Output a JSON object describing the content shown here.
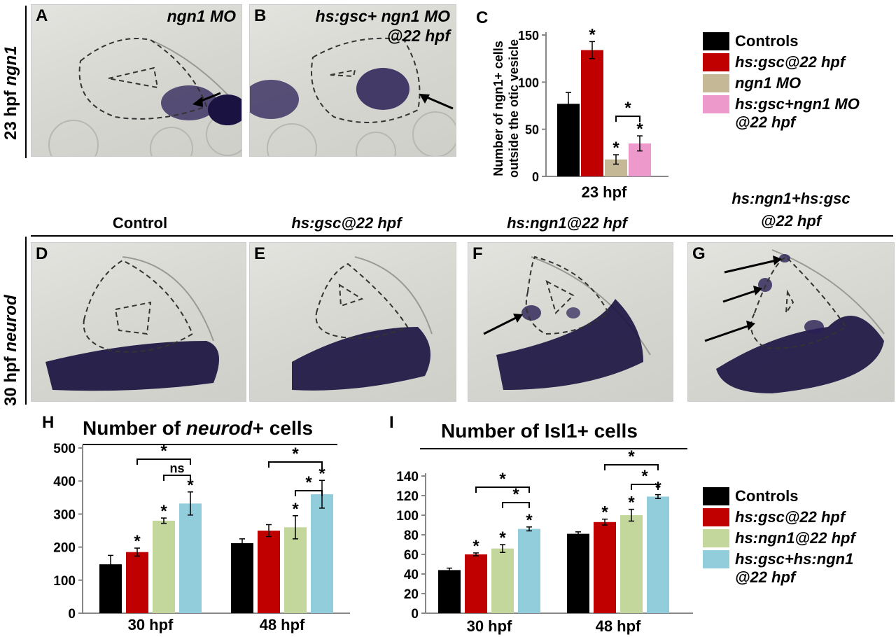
{
  "row1_label": "23 hpf",
  "row1_label_gene": "ngn1",
  "row2_label": "30 hpf",
  "row2_label_gene": "neurod",
  "panels": {
    "A": {
      "letter": "A",
      "title": "ngn1 MO"
    },
    "B": {
      "letter": "B",
      "title_line1": "hs:gsc+ ngn1 MO",
      "title_line2": "@22 hpf"
    },
    "D": {
      "letter": "D"
    },
    "E": {
      "letter": "E"
    },
    "F": {
      "letter": "F"
    },
    "G": {
      "letter": "G"
    }
  },
  "row2_titles": {
    "D": "Control",
    "E": "hs:gsc@22 hpf",
    "F": "hs:ngn1@22 hpf",
    "G_line1": "hs:ngn1+hs:gsc",
    "G_line2": "@22 hpf"
  },
  "colors": {
    "controls": "#000000",
    "gsc": "#c00000",
    "ngn1mo": "#c4b896",
    "gsc_ngn1mo": "#ee99cc",
    "ngn1": "#c3d69b",
    "gsc_ngn1": "#92cddc",
    "stain": "#2a1f55"
  },
  "legend_top": [
    {
      "label": "Controls",
      "color": "#000000"
    },
    {
      "label": "hs:gsc@22 hpf",
      "color": "#c00000"
    },
    {
      "label": "ngn1 MO",
      "color": "#c4b896"
    },
    {
      "label": "hs:gsc+ngn1 MO",
      "label2": "@22 hpf",
      "color": "#ee99cc"
    }
  ],
  "legend_bottom": [
    {
      "label": "Controls",
      "color": "#000000"
    },
    {
      "label": "hs:gsc@22 hpf",
      "color": "#c00000"
    },
    {
      "label": "hs:ngn1@22 hpf",
      "color": "#c3d69b"
    },
    {
      "label": "hs:gsc+hs:ngn1",
      "label2": "@22 hpf",
      "color": "#92cddc"
    }
  ],
  "chart_data": [
    {
      "id": "C",
      "type": "bar",
      "letter": "C",
      "ylabel_line1": "Number of ngn1+ cells",
      "ylabel_line2": "outside the otic vesicle",
      "categories": [
        "23 hpf"
      ],
      "ylim": [
        0,
        150
      ],
      "yticks": [
        0,
        50,
        100,
        150
      ],
      "series": [
        {
          "name": "Controls",
          "color": "#000000",
          "values": [
            77
          ],
          "err": [
            12
          ],
          "star": [
            false
          ]
        },
        {
          "name": "hs:gsc@22 hpf",
          "color": "#c00000",
          "values": [
            134
          ],
          "err": [
            9
          ],
          "star": [
            true
          ]
        },
        {
          "name": "ngn1 MO",
          "color": "#c4b896",
          "values": [
            18
          ],
          "err": [
            5
          ],
          "star": [
            true
          ]
        },
        {
          "name": "hs:gsc+ngn1 MO @22 hpf",
          "color": "#ee99cc",
          "values": [
            35
          ],
          "err": [
            8
          ],
          "star": [
            true
          ]
        }
      ],
      "brackets": [
        {
          "from": 2,
          "to": 3,
          "label": "*"
        }
      ]
    },
    {
      "id": "H",
      "type": "bar",
      "letter": "H",
      "title_pre": "Number of ",
      "title_italic": "neurod",
      "title_post": "+ cells",
      "categories": [
        "30 hpf",
        "48 hpf"
      ],
      "ylim": [
        0,
        500
      ],
      "yticks": [
        0,
        100,
        200,
        300,
        400,
        500
      ],
      "series": [
        {
          "name": "Controls",
          "color": "#000000",
          "values": [
            148,
            212
          ],
          "err": [
            27,
            13
          ],
          "star": [
            false,
            false
          ]
        },
        {
          "name": "hs:gsc@22 hpf",
          "color": "#c00000",
          "values": [
            185,
            250
          ],
          "err": [
            12,
            18
          ],
          "star": [
            true,
            false
          ]
        },
        {
          "name": "hs:ngn1@22 hpf",
          "color": "#c3d69b",
          "values": [
            280,
            260
          ],
          "err": [
            8,
            35
          ],
          "star": [
            true,
            true
          ]
        },
        {
          "name": "hs:gsc+hs:ngn1 @22 hpf",
          "color": "#92cddc",
          "values": [
            332,
            360
          ],
          "err": [
            35,
            42
          ],
          "star": [
            true,
            true
          ]
        }
      ],
      "brackets": [
        {
          "group": 0,
          "from": 1,
          "to": 3,
          "label": "*",
          "level": 2
        },
        {
          "group": 0,
          "from": 2,
          "to": 3,
          "label": "ns",
          "level": 1
        },
        {
          "group": 1,
          "from": 1,
          "to": 3,
          "label": "*",
          "level": 2
        },
        {
          "group": 1,
          "from": 2,
          "to": 3,
          "label": "*",
          "level": 1
        }
      ]
    },
    {
      "id": "I",
      "type": "bar",
      "letter": "I",
      "title": "Number of Isl1+ cells",
      "categories": [
        "30 hpf",
        "48 hpf"
      ],
      "ylim": [
        0,
        140
      ],
      "yticks": [
        0,
        20,
        40,
        60,
        80,
        100,
        120,
        140
      ],
      "series": [
        {
          "name": "Controls",
          "color": "#000000",
          "values": [
            44,
            81
          ],
          "err": [
            2,
            2
          ],
          "star": [
            false,
            false
          ]
        },
        {
          "name": "hs:gsc@22 hpf",
          "color": "#c00000",
          "values": [
            60,
            93
          ],
          "err": [
            1.5,
            3
          ],
          "star": [
            true,
            true
          ]
        },
        {
          "name": "hs:ngn1@22 hpf",
          "color": "#c3d69b",
          "values": [
            66,
            100
          ],
          "err": [
            4,
            6
          ],
          "star": [
            true,
            true
          ]
        },
        {
          "name": "hs:gsc+hs:ngn1 @22 hpf",
          "color": "#92cddc",
          "values": [
            86,
            119
          ],
          "err": [
            2,
            2
          ],
          "star": [
            true,
            true
          ]
        }
      ],
      "brackets": [
        {
          "group": 0,
          "from": 1,
          "to": 3,
          "label": "*",
          "level": 2
        },
        {
          "group": 0,
          "from": 2,
          "to": 3,
          "label": "*",
          "level": 1
        },
        {
          "group": 1,
          "from": 1,
          "to": 3,
          "label": "*",
          "level": 2
        },
        {
          "group": 1,
          "from": 2,
          "to": 3,
          "label": "*",
          "level": 1
        }
      ]
    }
  ]
}
